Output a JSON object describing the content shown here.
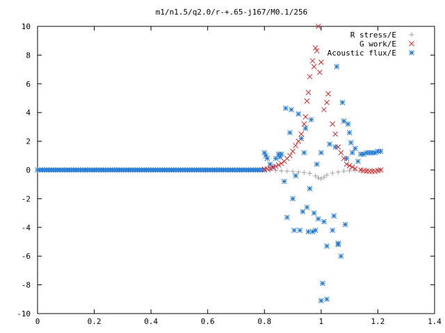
{
  "chart_data": {
    "type": "scatter",
    "title": "m1/n1.5/q2.0/r-+.65-j167/M0.1/256",
    "xlabel": "",
    "ylabel": "",
    "xlim": [
      0,
      1.4
    ],
    "ylim": [
      -10,
      10
    ],
    "x_ticks": [
      "0",
      "0.2",
      "0.4",
      "0.6",
      "0.8",
      "1",
      "1.2",
      "1.4"
    ],
    "y_ticks": [
      "-10",
      "-8",
      "-6",
      "-4",
      "-2",
      "0",
      "2",
      "4",
      "6",
      "8",
      "10"
    ],
    "grid": false,
    "legend_position": "top-right",
    "series": [
      {
        "name": "R stress/E",
        "marker": "plus",
        "color": "#a0a0a0",
        "points": [
          [
            0.8,
            0.0
          ],
          [
            0.82,
            -0.02
          ],
          [
            0.84,
            -0.04
          ],
          [
            0.86,
            -0.06
          ],
          [
            0.88,
            -0.08
          ],
          [
            0.9,
            -0.1
          ],
          [
            0.92,
            -0.14
          ],
          [
            0.94,
            -0.18
          ],
          [
            0.96,
            -0.24
          ],
          [
            0.98,
            -0.42
          ],
          [
            0.99,
            -0.55
          ],
          [
            1.0,
            -0.62
          ],
          [
            1.01,
            -0.5
          ],
          [
            1.02,
            -0.35
          ],
          [
            1.04,
            -0.22
          ],
          [
            1.06,
            -0.14
          ],
          [
            1.08,
            -0.08
          ],
          [
            1.1,
            -0.05
          ],
          [
            1.12,
            -0.04
          ],
          [
            1.14,
            -0.03
          ],
          [
            1.16,
            -0.02
          ],
          [
            1.18,
            -0.02
          ],
          [
            1.2,
            -0.01
          ],
          [
            1.21,
            0.0
          ]
        ]
      },
      {
        "name": "G work/E",
        "marker": "cross",
        "color": "#d62728",
        "points": [
          [
            0.8,
            0.05
          ],
          [
            0.81,
            0.08
          ],
          [
            0.82,
            0.12
          ],
          [
            0.83,
            0.18
          ],
          [
            0.84,
            0.25
          ],
          [
            0.85,
            0.35
          ],
          [
            0.86,
            0.45
          ],
          [
            0.87,
            0.6
          ],
          [
            0.88,
            0.8
          ],
          [
            0.89,
            1.0
          ],
          [
            0.9,
            1.3
          ],
          [
            0.91,
            1.7
          ],
          [
            0.92,
            2.0
          ],
          [
            0.93,
            2.5
          ],
          [
            0.94,
            3.2
          ],
          [
            0.945,
            3.7
          ],
          [
            0.95,
            4.8
          ],
          [
            0.955,
            5.4
          ],
          [
            0.96,
            6.5
          ],
          [
            0.97,
            7.6
          ],
          [
            0.975,
            7.2
          ],
          [
            0.98,
            8.5
          ],
          [
            0.985,
            8.3
          ],
          [
            0.99,
            10.0
          ],
          [
            0.995,
            6.8
          ],
          [
            1.0,
            7.5
          ],
          [
            1.01,
            4.2
          ],
          [
            1.02,
            4.7
          ],
          [
            1.025,
            5.3
          ],
          [
            1.04,
            3.2
          ],
          [
            1.05,
            2.5
          ],
          [
            1.06,
            1.6
          ],
          [
            1.07,
            1.2
          ],
          [
            1.08,
            0.8
          ],
          [
            1.09,
            0.4
          ],
          [
            1.1,
            0.3
          ],
          [
            1.11,
            0.2
          ],
          [
            1.12,
            0.1
          ],
          [
            1.14,
            0.0
          ],
          [
            1.15,
            -0.05
          ],
          [
            1.16,
            -0.08
          ],
          [
            1.17,
            -0.1
          ],
          [
            1.18,
            -0.1
          ],
          [
            1.19,
            -0.1
          ],
          [
            1.2,
            -0.05
          ],
          [
            1.21,
            0.0
          ]
        ]
      },
      {
        "name": "Acoustic flux/E",
        "marker": "star",
        "color": "#1f77d4",
        "points": [
          [
            0.8,
            1.2
          ],
          [
            0.805,
            1.0
          ],
          [
            0.81,
            0.8
          ],
          [
            0.82,
            0.4
          ],
          [
            0.83,
            0.2
          ],
          [
            0.84,
            0.8
          ],
          [
            0.85,
            1.1
          ],
          [
            0.855,
            0.9
          ],
          [
            0.86,
            1.1
          ],
          [
            0.87,
            -0.8
          ],
          [
            0.875,
            4.3
          ],
          [
            0.88,
            -3.3
          ],
          [
            0.89,
            2.6
          ],
          [
            0.895,
            4.2
          ],
          [
            0.9,
            -2.0
          ],
          [
            0.905,
            -4.2
          ],
          [
            0.91,
            -0.4
          ],
          [
            0.92,
            3.9
          ],
          [
            0.925,
            -4.2
          ],
          [
            0.93,
            2.2
          ],
          [
            0.935,
            -2.9
          ],
          [
            0.94,
            1.2
          ],
          [
            0.945,
            2.9
          ],
          [
            0.95,
            -2.6
          ],
          [
            0.955,
            -4.3
          ],
          [
            0.96,
            -1.3
          ],
          [
            0.965,
            3.5
          ],
          [
            0.97,
            -4.3
          ],
          [
            0.975,
            -3.0
          ],
          [
            0.98,
            -4.2
          ],
          [
            0.985,
            0.4
          ],
          [
            0.99,
            -3.4
          ],
          [
            1.0,
            1.2
          ],
          [
            1.005,
            -7.9
          ],
          [
            1.01,
            -3.6
          ],
          [
            1.02,
            -9.0
          ],
          [
            1.03,
            1.8
          ],
          [
            1.04,
            -4.2
          ],
          [
            1.045,
            -3.2
          ],
          [
            1.05,
            1.6
          ],
          [
            1.055,
            7.2
          ],
          [
            1.06,
            -5.2
          ],
          [
            1.07,
            -6.0
          ],
          [
            1.075,
            4.7
          ],
          [
            1.08,
            3.4
          ],
          [
            1.085,
            -3.8
          ],
          [
            1.09,
            0.8
          ],
          [
            1.095,
            3.2
          ],
          [
            1.1,
            2.6
          ],
          [
            1.105,
            1.9
          ],
          [
            1.11,
            1.2
          ],
          [
            1.12,
            1.5
          ],
          [
            1.13,
            0.6
          ],
          [
            1.14,
            1.1
          ],
          [
            1.15,
            1.1
          ],
          [
            1.16,
            1.2
          ],
          [
            1.17,
            1.2
          ],
          [
            1.18,
            1.2
          ],
          [
            1.19,
            1.2
          ],
          [
            1.2,
            1.3
          ],
          [
            1.21,
            1.3
          ],
          [
            1.0,
            -9.1
          ],
          [
            1.02,
            -5.3
          ],
          [
            1.06,
            -5.1
          ]
        ],
        "baseline_points_x_from": 0.0,
        "baseline_points_x_to": 0.8,
        "baseline_points_y": 0.0
      }
    ]
  }
}
